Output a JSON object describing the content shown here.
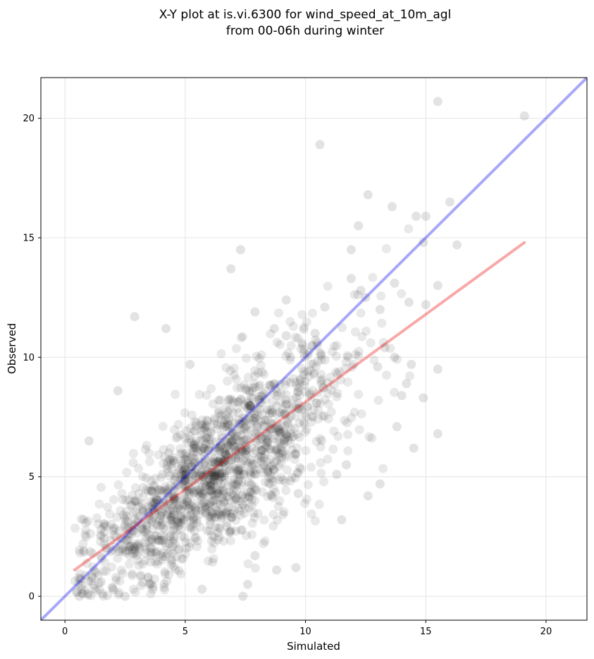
{
  "chart_data": {
    "type": "scatter",
    "title_lines": [
      "X-Y plot at is.vi.6300 for wind_speed_at_10m_agl",
      "from 00-06h during winter"
    ],
    "xlabel": "Simulated",
    "ylabel": "Observed",
    "xlim": [
      -1.0,
      21.7
    ],
    "ylim": [
      -1.0,
      21.7
    ],
    "xticks": [
      0,
      5,
      10,
      15,
      20
    ],
    "yticks": [
      0,
      5,
      10,
      15,
      20
    ],
    "grid": true,
    "colors": {
      "points": "#000000",
      "identity_line": "#0000ee",
      "fit_line": "#ee0000"
    },
    "identity_line": {
      "x": [
        -1.0,
        21.7
      ],
      "y": [
        -1.0,
        21.7
      ]
    },
    "fit_line": {
      "x": [
        0.4,
        19.1
      ],
      "y": [
        1.1,
        14.8
      ]
    },
    "points_x": [
      19.1,
      15.5,
      10.6,
      12.6,
      7.3,
      2.9,
      4.2,
      6.9,
      16.0,
      15.0,
      14.6,
      15.5,
      12.2,
      13.6,
      15.5,
      14.3,
      13.1,
      11.9,
      12.5,
      14.9,
      15.0,
      13.7,
      14.4,
      14.9,
      15.5,
      11.5,
      13.8,
      14.0,
      16.3,
      14.5,
      9.6,
      12.6,
      11.3,
      7.4,
      7.6,
      0.6,
      1.5,
      2.5,
      3.6,
      5.7,
      7.9,
      8.8,
      9.7,
      11.7,
      13.1,
      14.2,
      2.2,
      1.0,
      5.2,
      9.2,
      10.4,
      7.9,
      13.3,
      10.8,
      12.3,
      11.9,
      8.7,
      9.2,
      13.7,
      13.0
    ],
    "points_y": [
      20.1,
      20.7,
      18.9,
      16.8,
      14.5,
      11.7,
      11.2,
      13.7,
      16.5,
      15.9,
      15.9,
      13.0,
      15.5,
      16.3,
      9.5,
      12.3,
      12.0,
      14.5,
      12.5,
      14.8,
      12.2,
      13.1,
      9.7,
      8.3,
      6.8,
      3.2,
      7.1,
      8.4,
      14.7,
      6.2,
      1.2,
      4.2,
      5.1,
      0.0,
      0.5,
      0.0,
      0.6,
      0.0,
      0.5,
      0.3,
      1.7,
      1.1,
      4.3,
      5.5,
      4.7,
      8.9,
      8.6,
      6.5,
      9.7,
      10.9,
      11.0,
      11.9,
      10.4,
      12.1,
      12.8,
      13.3,
      11.2,
      12.4,
      10.0,
      9.6
    ]
  }
}
